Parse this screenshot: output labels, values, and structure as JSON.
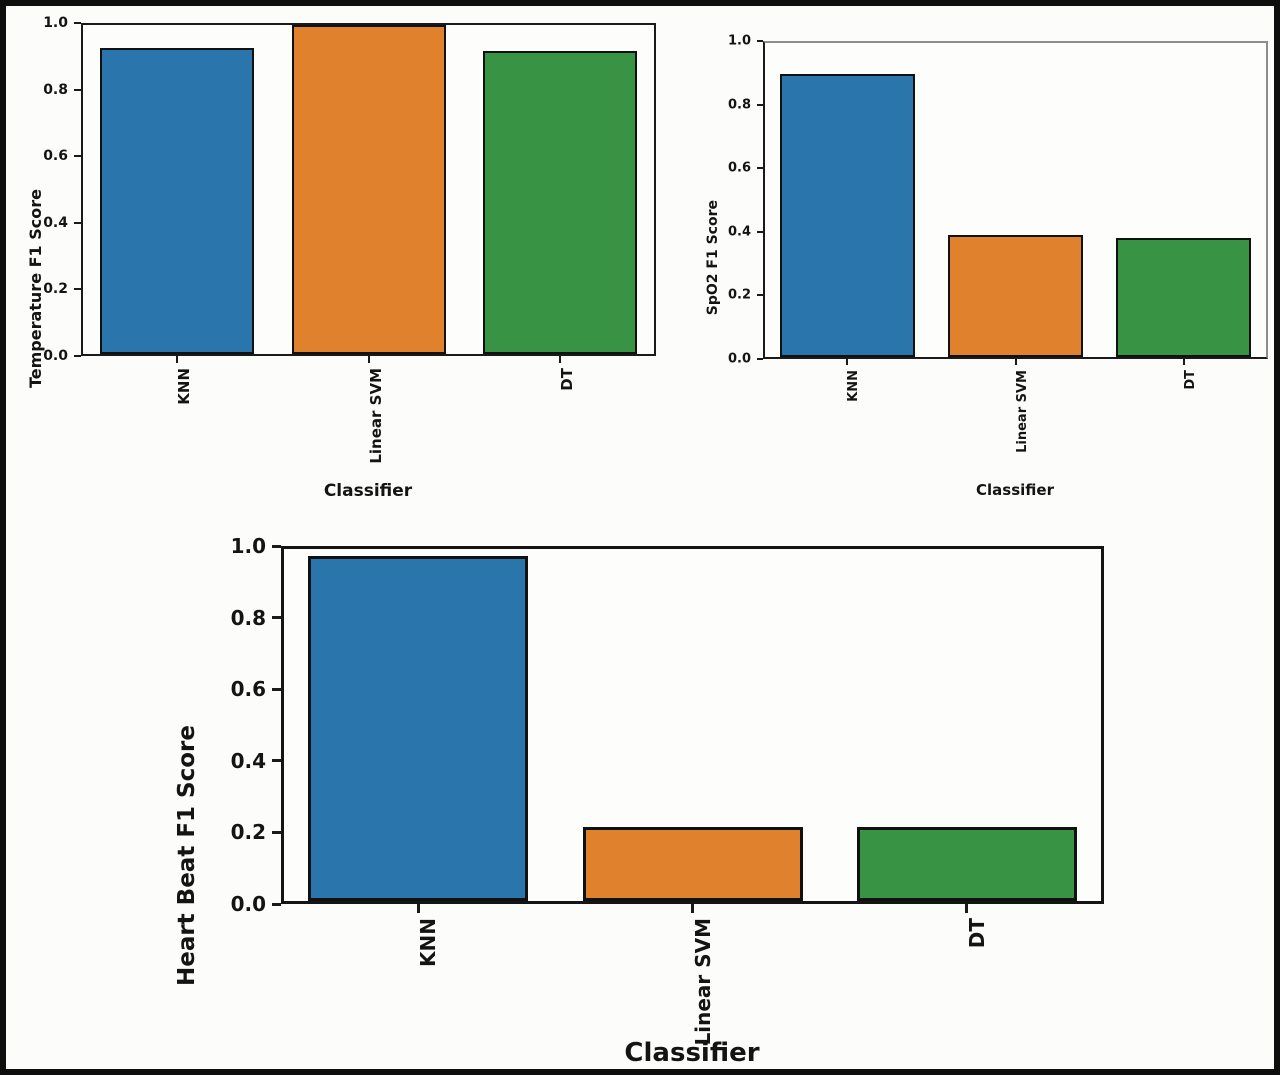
{
  "figure": {
    "background": "#fcfcfa",
    "border_color": "#0e0e0e",
    "bar_edge_color": "#111111"
  },
  "chart_data": [
    {
      "type": "bar",
      "title": "",
      "categories": [
        "KNN",
        "Linear SVM",
        "DT"
      ],
      "values": [
        0.93,
        1.0,
        0.92
      ],
      "xlabel": "Classifier",
      "ylabel": "Temperature F1 Score",
      "ylim": [
        0.0,
        1.0
      ],
      "yticks": [
        0.0,
        0.2,
        0.4,
        0.6,
        0.8,
        1.0
      ],
      "bar_colors": [
        "#2a76ac",
        "#e0812e",
        "#389345"
      ],
      "grid": false,
      "legend": null
    },
    {
      "type": "bar",
      "title": "",
      "categories": [
        "KNN",
        "Linear SVM",
        "DT"
      ],
      "values": [
        0.9,
        0.39,
        0.38
      ],
      "xlabel": "Classifier",
      "ylabel": "SpO2 F1 Score",
      "ylim": [
        0.0,
        1.0
      ],
      "yticks": [
        0.0,
        0.2,
        0.4,
        0.6,
        0.8,
        1.0
      ],
      "bar_colors": [
        "#2a76ac",
        "#e0812e",
        "#389345"
      ],
      "grid": false,
      "legend": null
    },
    {
      "type": "bar",
      "title": "",
      "categories": [
        "KNN",
        "Linear SVM",
        "DT"
      ],
      "values": [
        0.98,
        0.21,
        0.21
      ],
      "xlabel": "Classifier",
      "ylabel": "Heart Beat F1 Score",
      "ylim": [
        0.0,
        1.0
      ],
      "yticks": [
        0.0,
        0.2,
        0.4,
        0.6,
        0.8,
        1.0
      ],
      "bar_colors": [
        "#2a76ac",
        "#e0812e",
        "#389345"
      ],
      "grid": false,
      "legend": null
    }
  ]
}
